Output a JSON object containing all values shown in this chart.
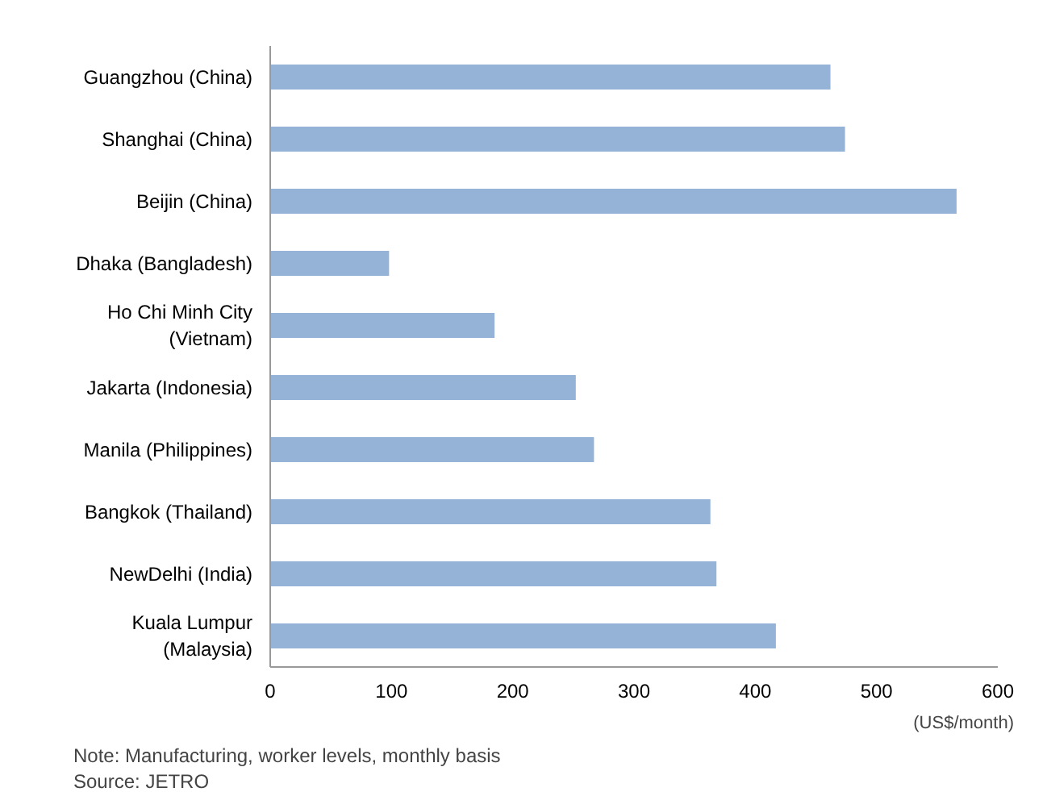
{
  "chart_data": {
    "type": "bar",
    "orientation": "horizontal",
    "categories": [
      "Guangzhou (China)",
      "Shanghai (China)",
      "Beijin (China)",
      "Dhaka (Bangladesh)",
      "Ho Chi Minh City\n(Vietnam)",
      "Jakarta (Indonesia)",
      "Manila (Philippines)",
      "Bangkok (Thailand)",
      "NewDelhi (India)",
      "Kuala Lumpur\n(Malaysia)"
    ],
    "values": [
      462,
      474,
      566,
      98,
      185,
      252,
      267,
      363,
      368,
      417
    ],
    "color": "#95b3d7",
    "xlim": [
      0,
      600
    ],
    "xticks": [
      0,
      100,
      200,
      300,
      400,
      500,
      600
    ],
    "xlabel": "(US$/month)",
    "grid": false,
    "annotations": [
      "Note: Manufacturing, worker levels, monthly basis",
      "Source: JETRO"
    ]
  }
}
